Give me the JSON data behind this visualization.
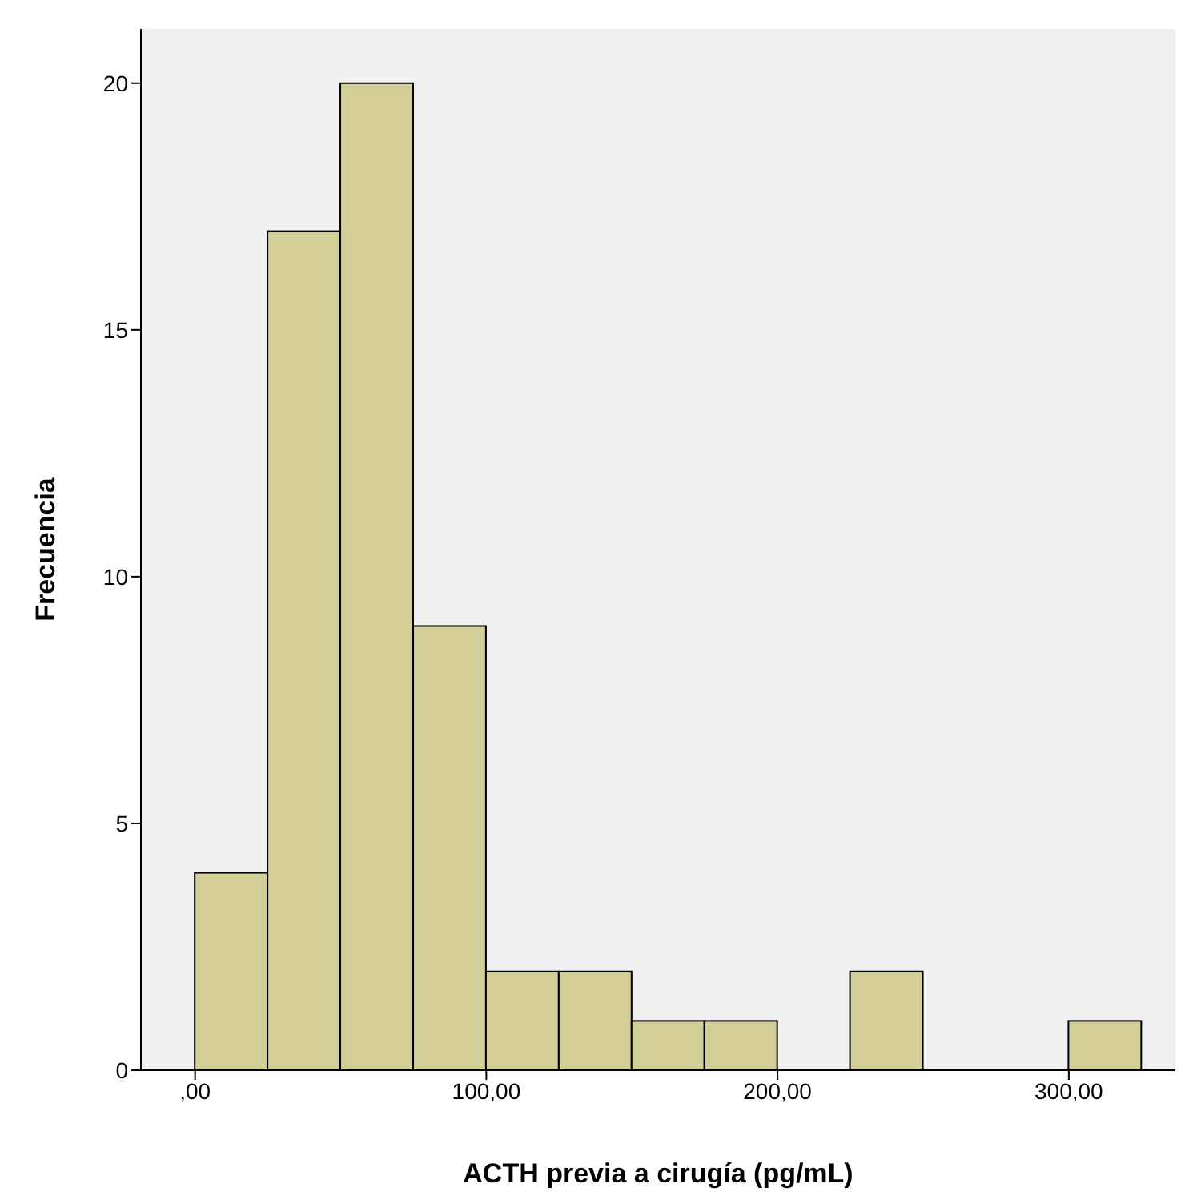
{
  "chart_data": {
    "type": "histogram",
    "xlabel": "ACTH previa a cirugía (pg/mL)",
    "ylabel": "Frecuencia",
    "bins": [
      0,
      25,
      50,
      75,
      100,
      125,
      150,
      175,
      200,
      225,
      250,
      275,
      300,
      325
    ],
    "values": [
      4,
      17,
      20,
      9,
      2,
      2,
      1,
      1,
      0,
      2,
      0,
      0,
      1
    ],
    "color": "#d3ce97",
    "xlim": [
      -18.6,
      336.6
    ],
    "xticks": [
      {
        "value": 0,
        "label": ",00"
      },
      {
        "value": 100,
        "label": "100,00"
      },
      {
        "value": 200,
        "label": "200,00"
      },
      {
        "value": 300,
        "label": "300,00"
      }
    ],
    "ylim": [
      0,
      21.1
    ],
    "yticks": [
      0,
      5,
      10,
      15,
      20
    ],
    "grid": false
  }
}
